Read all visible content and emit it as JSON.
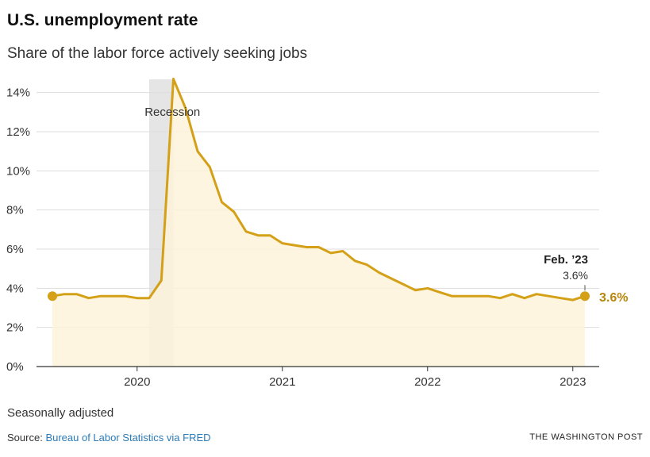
{
  "header": {
    "title": "U.S. unemployment rate",
    "subtitle": "Share of the labor force actively seeking jobs"
  },
  "footer": {
    "note": "Seasonally adjusted",
    "source_label": "Source:",
    "source_link": "Bureau of Labor Statistics via FRED",
    "brand": "THE WASHINGTON POST"
  },
  "colors": {
    "line": "#d4a017",
    "fill": "#fdf3d9",
    "recession": "#dcdcdc",
    "grid": "#dddddd",
    "last_label": "#b8860b"
  },
  "chart_data": {
    "type": "area",
    "x_unit": "month",
    "x_start": "2019-06",
    "x_end": "2023-02",
    "values": [
      3.6,
      3.7,
      3.7,
      3.5,
      3.6,
      3.6,
      3.6,
      3.5,
      3.5,
      4.4,
      14.7,
      13.2,
      11.0,
      10.2,
      8.4,
      7.9,
      6.9,
      6.7,
      6.7,
      6.3,
      6.2,
      6.1,
      6.1,
      5.8,
      5.9,
      5.4,
      5.2,
      4.8,
      4.5,
      4.2,
      3.9,
      4.0,
      3.8,
      3.6,
      3.6,
      3.6,
      3.6,
      3.5,
      3.7,
      3.5,
      3.7,
      3.6,
      3.5,
      3.4,
      3.6
    ],
    "ylim": [
      0,
      15
    ],
    "y_ticks": [
      0,
      2,
      4,
      6,
      8,
      10,
      12,
      14
    ],
    "y_tick_labels": [
      "0%",
      "2%",
      "4%",
      "6%",
      "8%",
      "10%",
      "12%",
      "14%"
    ],
    "x_ticks": [
      "2020-01",
      "2021-01",
      "2022-01",
      "2023-01"
    ],
    "x_tick_labels": [
      "2020",
      "2021",
      "2022",
      "2023"
    ],
    "grid": true,
    "recession": {
      "start": "2020-02",
      "end": "2020-04",
      "label": "Recession"
    },
    "annotation": {
      "date": "Feb. ’23",
      "value_label": "3.6%"
    },
    "last_value_label": "3.6%"
  }
}
